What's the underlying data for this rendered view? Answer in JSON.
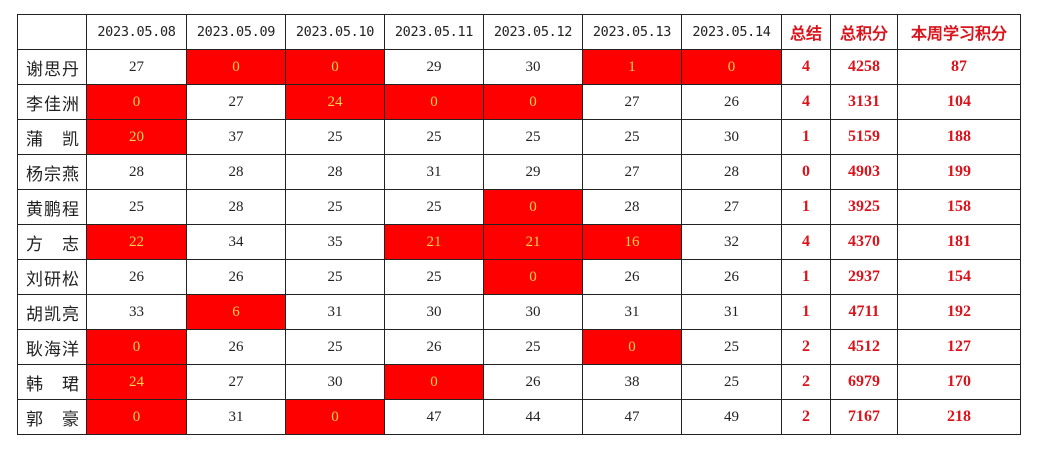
{
  "header": {
    "corner": "",
    "dates": [
      "2023.05.08",
      "2023.05.09",
      "2023.05.10",
      "2023.05.11",
      "2023.05.12",
      "2023.05.13",
      "2023.05.14"
    ],
    "summary": "总结",
    "total_points": "总积分",
    "week_points": "本周学习积分"
  },
  "colors": {
    "highlight_fill": "#fe0000",
    "highlight_text": "#ffd24a",
    "summary_text": "#d8141c"
  },
  "rows": [
    {
      "name": "谢思丹",
      "days": [
        27,
        0,
        0,
        29,
        30,
        1,
        0
      ],
      "summary": 4,
      "total": 4258,
      "week": 87
    },
    {
      "name": "李佳洲",
      "days": [
        0,
        27,
        24,
        0,
        0,
        27,
        26
      ],
      "summary": 4,
      "total": 3131,
      "week": 104
    },
    {
      "name": "蒲　凯",
      "days": [
        20,
        37,
        25,
        25,
        25,
        25,
        30
      ],
      "summary": 1,
      "total": 5159,
      "week": 188
    },
    {
      "name": "杨宗燕",
      "days": [
        28,
        28,
        28,
        31,
        29,
        27,
        28
      ],
      "summary": 0,
      "total": 4903,
      "week": 199
    },
    {
      "name": "黄鹏程",
      "days": [
        25,
        28,
        25,
        25,
        0,
        28,
        27
      ],
      "summary": 1,
      "total": 3925,
      "week": 158
    },
    {
      "name": "方　志",
      "days": [
        22,
        34,
        35,
        21,
        21,
        16,
        32
      ],
      "summary": 4,
      "total": 4370,
      "week": 181
    },
    {
      "name": "刘研松",
      "days": [
        26,
        26,
        25,
        25,
        0,
        26,
        26
      ],
      "summary": 1,
      "total": 2937,
      "week": 154
    },
    {
      "name": "胡凯亮",
      "days": [
        33,
        6,
        31,
        30,
        30,
        31,
        31
      ],
      "summary": 1,
      "total": 4711,
      "week": 192
    },
    {
      "name": "耿海洋",
      "days": [
        0,
        26,
        25,
        26,
        25,
        0,
        25
      ],
      "summary": 2,
      "total": 4512,
      "week": 127
    },
    {
      "name": "韩　珺",
      "days": [
        24,
        27,
        30,
        0,
        26,
        38,
        25
      ],
      "summary": 2,
      "total": 6979,
      "week": 170
    },
    {
      "name": "郭　豪",
      "days": [
        0,
        31,
        0,
        47,
        44,
        47,
        49
      ],
      "summary": 2,
      "total": 7167,
      "week": 218
    }
  ]
}
